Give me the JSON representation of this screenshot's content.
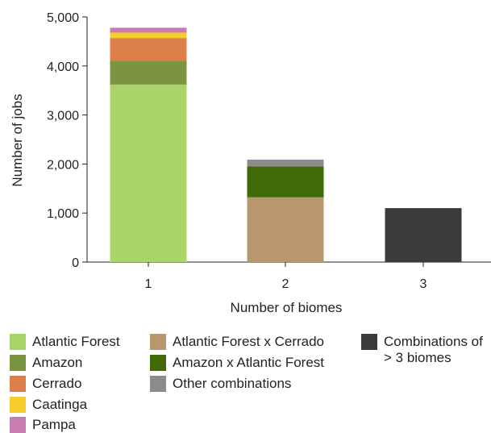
{
  "chart_data": {
    "type": "bar",
    "stacked": true,
    "xlabel": "Number of biomes",
    "ylabel": "Number of jobs",
    "ylim": [
      0,
      5000
    ],
    "yticks": [
      0,
      1000,
      2000,
      3000,
      4000,
      5000
    ],
    "ytick_labels": [
      "0",
      "1,000",
      "2,000",
      "3,000",
      "4,000",
      "5,000"
    ],
    "categories": [
      "1",
      "2",
      "3"
    ],
    "grid": false,
    "legend_position": "bottom",
    "series": [
      {
        "name": "Atlantic Forest",
        "color": "#a9d46a",
        "values": [
          3620,
          0,
          0
        ]
      },
      {
        "name": "Amazon",
        "color": "#7a9440",
        "values": [
          490,
          0,
          0
        ]
      },
      {
        "name": "Cerrado",
        "color": "#dc7f49",
        "values": [
          460,
          0,
          0
        ]
      },
      {
        "name": "Caatinga",
        "color": "#f6cd2c",
        "values": [
          110,
          0,
          0
        ]
      },
      {
        "name": "Pampa",
        "color": "#c77daf",
        "values": [
          100,
          0,
          0
        ]
      },
      {
        "name": "Atlantic Forest x Cerrado",
        "color": "#b8976d",
        "values": [
          0,
          1320,
          0
        ]
      },
      {
        "name": "Amazon x Atlantic Forest",
        "color": "#3f6a07",
        "values": [
          0,
          630,
          0
        ]
      },
      {
        "name": "Other combinations",
        "color": "#8c8c8e",
        "values": [
          0,
          140,
          0
        ]
      },
      {
        "name": "Combinations of\n> 3 biomes",
        "color": "#3b3b3b",
        "values": [
          0,
          0,
          1100
        ]
      }
    ]
  }
}
